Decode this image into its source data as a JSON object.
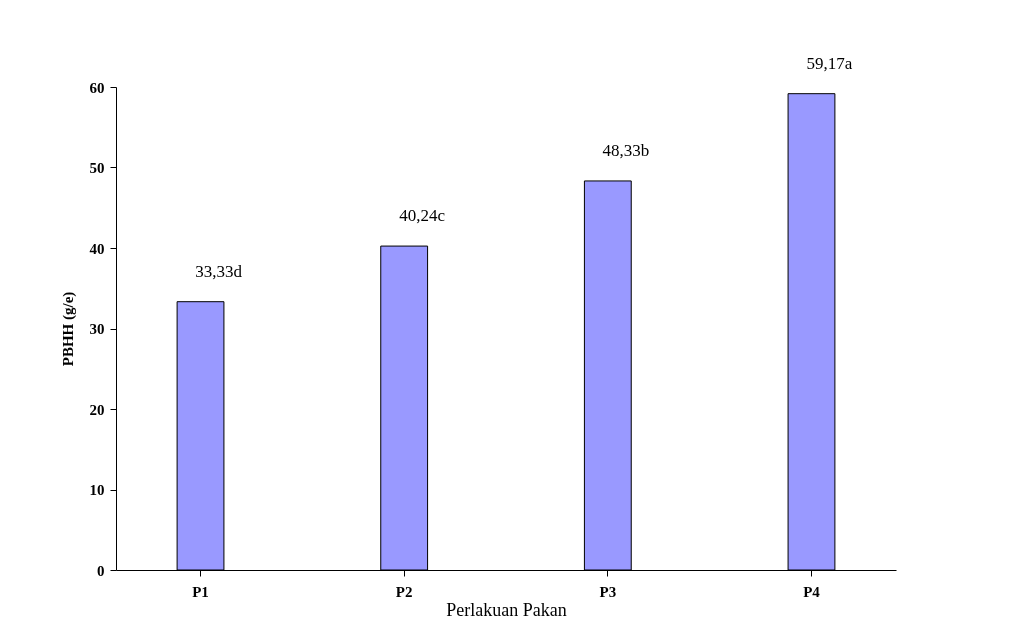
{
  "chart_data": {
    "type": "bar",
    "xlabel": "Perlakuan Pakan",
    "ylabel": "PBHH (g/e)",
    "categories": [
      "P1",
      "P2",
      "P3",
      "P4"
    ],
    "values": [
      33.33,
      40.24,
      48.33,
      59.17
    ],
    "value_labels": [
      "33,33d",
      "40,24c",
      "48,33b",
      "59,17a"
    ],
    "color": "#9999ff",
    "ylim": [
      0,
      60
    ],
    "yticks": [
      0,
      10,
      20,
      30,
      40,
      50,
      60
    ],
    "grid": false
  }
}
